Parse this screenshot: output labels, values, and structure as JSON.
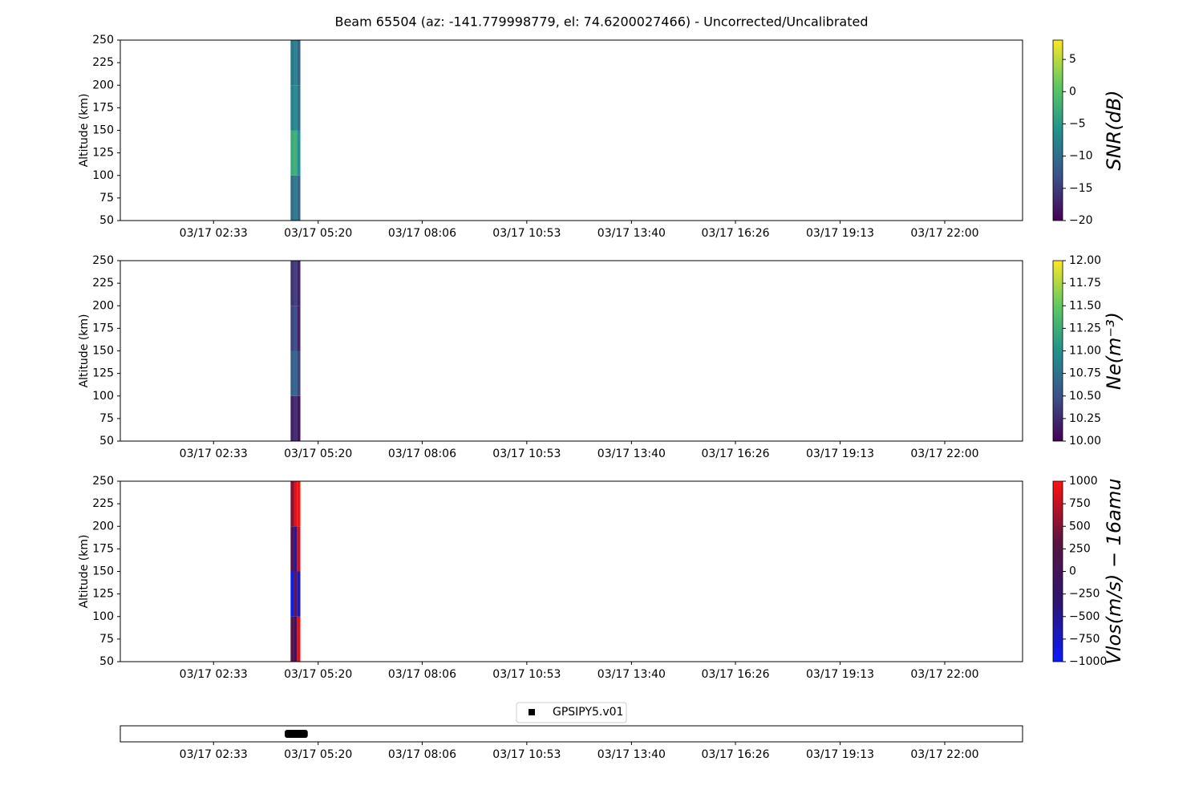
{
  "chart_data": [
    {
      "type": "heatmap",
      "title": "Beam 65504 (az: -141.779998779, el: 74.6200027466) - Uncorrected/Uncalibrated",
      "ylabel": "Altitude (km)",
      "xlim": [
        0.07,
        24.07
      ],
      "ylim": [
        50,
        250
      ],
      "xticks": [
        {
          "value": 2.55,
          "label": "03/17 02:33"
        },
        {
          "value": 5.333,
          "label": "03/17 05:20"
        },
        {
          "value": 8.1,
          "label": "03/17 08:06"
        },
        {
          "value": 10.883,
          "label": "03/17 10:53"
        },
        {
          "value": 13.667,
          "label": "03/17 13:40"
        },
        {
          "value": 16.433,
          "label": "03/17 16:26"
        },
        {
          "value": 19.217,
          "label": "03/17 19:13"
        },
        {
          "value": 22,
          "label": "03/17 22:00"
        }
      ],
      "yticks": [
        50,
        75,
        100,
        125,
        150,
        175,
        200,
        225,
        250
      ],
      "x_edges": [
        4.6,
        4.69,
        4.77,
        4.86
      ],
      "y_edges": [
        50,
        100,
        150,
        200,
        250
      ],
      "z": [
        [
          -10,
          -8,
          -11
        ],
        [
          -3,
          -2,
          -6
        ],
        [
          -8,
          -6,
          -10
        ],
        [
          -9,
          -7,
          -11
        ]
      ],
      "colorbar_label": "SNR(dB)",
      "clim": [
        -20,
        8
      ],
      "colormap": [
        "#440154",
        "#3b528b",
        "#21918c",
        "#5ec962",
        "#fde725"
      ],
      "cticks": [
        5,
        0,
        {
          "value": -5,
          "label": "−5"
        },
        {
          "value": -10,
          "label": "−10"
        },
        {
          "value": -15,
          "label": "−15"
        },
        {
          "value": -20,
          "label": "−20"
        }
      ]
    },
    {
      "type": "heatmap",
      "ylabel": "Altitude (km)",
      "xlim": [
        0.07,
        24.07
      ],
      "ylim": [
        50,
        250
      ],
      "xticks": [
        {
          "value": 2.55,
          "label": "03/17 02:33"
        },
        {
          "value": 5.333,
          "label": "03/17 05:20"
        },
        {
          "value": 8.1,
          "label": "03/17 08:06"
        },
        {
          "value": 10.883,
          "label": "03/17 10:53"
        },
        {
          "value": 13.667,
          "label": "03/17 13:40"
        },
        {
          "value": 16.433,
          "label": "03/17 16:26"
        },
        {
          "value": 19.217,
          "label": "03/17 19:13"
        },
        {
          "value": 22,
          "label": "03/17 22:00"
        }
      ],
      "yticks": [
        50,
        75,
        100,
        125,
        150,
        175,
        200,
        225,
        250
      ],
      "x_edges": [
        4.6,
        4.69,
        4.77,
        4.86
      ],
      "y_edges": [
        50,
        100,
        150,
        200,
        250
      ],
      "z": [
        [
          10.2,
          10.3,
          10.1
        ],
        [
          10.6,
          10.7,
          10.4
        ],
        [
          10.4,
          10.5,
          10.2
        ],
        [
          10.3,
          10.4,
          10.2
        ]
      ],
      "colorbar_label": "Ne(m⁻³)",
      "clim": [
        10,
        12
      ],
      "colormap": [
        "#440154",
        "#3b528b",
        "#21918c",
        "#5ec962",
        "#fde725"
      ],
      "cticks": [
        {
          "value": 12,
          "label": "12.00"
        },
        {
          "value": 11.75,
          "label": "11.75"
        },
        {
          "value": 11.5,
          "label": "11.50"
        },
        {
          "value": 11.25,
          "label": "11.25"
        },
        {
          "value": 11,
          "label": "11.00"
        },
        {
          "value": 10.75,
          "label": "10.75"
        },
        {
          "value": 10.5,
          "label": "10.50"
        },
        {
          "value": 10.25,
          "label": "10.25"
        },
        {
          "value": 10,
          "label": "10.00"
        }
      ]
    },
    {
      "type": "heatmap",
      "ylabel": "Altitude (km)",
      "xlim": [
        0.07,
        24.07
      ],
      "ylim": [
        50,
        250
      ],
      "xticks": [
        {
          "value": 2.55,
          "label": "03/17 02:33"
        },
        {
          "value": 5.333,
          "label": "03/17 05:20"
        },
        {
          "value": 8.1,
          "label": "03/17 08:06"
        },
        {
          "value": 10.883,
          "label": "03/17 10:53"
        },
        {
          "value": 13.667,
          "label": "03/17 13:40"
        },
        {
          "value": 16.433,
          "label": "03/17 16:26"
        },
        {
          "value": 19.217,
          "label": "03/17 19:13"
        },
        {
          "value": 22,
          "label": "03/17 22:00"
        }
      ],
      "yticks": [
        50,
        75,
        100,
        125,
        150,
        175,
        200,
        225,
        250
      ],
      "x_edges": [
        4.6,
        4.69,
        4.77,
        4.86
      ],
      "y_edges": [
        50,
        100,
        150,
        200,
        250
      ],
      "z": [
        [
          300,
          -200,
          900
        ],
        [
          -900,
          400,
          -700
        ],
        [
          200,
          -600,
          800
        ],
        [
          500,
          900,
          1000
        ]
      ],
      "colorbar_label": "Vlos(m/s) − 16amu",
      "clim": [
        -1000,
        1000
      ],
      "colormap": [
        "#0a1aff",
        "#2e1470",
        "#5a1440",
        "#ff1010"
      ],
      "cticks": [
        1000,
        750,
        500,
        250,
        0,
        {
          "value": -250,
          "label": "−250"
        },
        {
          "value": -500,
          "label": "−500"
        },
        {
          "value": -750,
          "label": "−750"
        },
        {
          "value": -1000,
          "label": "−1000"
        }
      ]
    },
    {
      "type": "scatter",
      "xlim": [
        0.07,
        24.07
      ],
      "ylim": [
        -1,
        1
      ],
      "xticks": [
        {
          "value": 2.55,
          "label": "03/17 02:33"
        },
        {
          "value": 5.333,
          "label": "03/17 05:20"
        },
        {
          "value": 8.1,
          "label": "03/17 08:06"
        },
        {
          "value": 10.883,
          "label": "03/17 10:53"
        },
        {
          "value": 13.667,
          "label": "03/17 13:40"
        },
        {
          "value": 16.433,
          "label": "03/17 16:26"
        },
        {
          "value": 19.217,
          "label": "03/17 19:13"
        },
        {
          "value": 22,
          "label": "03/17 22:00"
        }
      ],
      "series": [
        {
          "name": "GPSIPY5.v01",
          "color": "#000000",
          "x": [
            4.55,
            4.6,
            4.65,
            4.7,
            4.75,
            4.8,
            4.85,
            4.9,
            4.95
          ],
          "values": [
            0,
            0,
            0,
            0,
            0,
            0,
            0,
            0,
            0
          ]
        }
      ]
    }
  ]
}
